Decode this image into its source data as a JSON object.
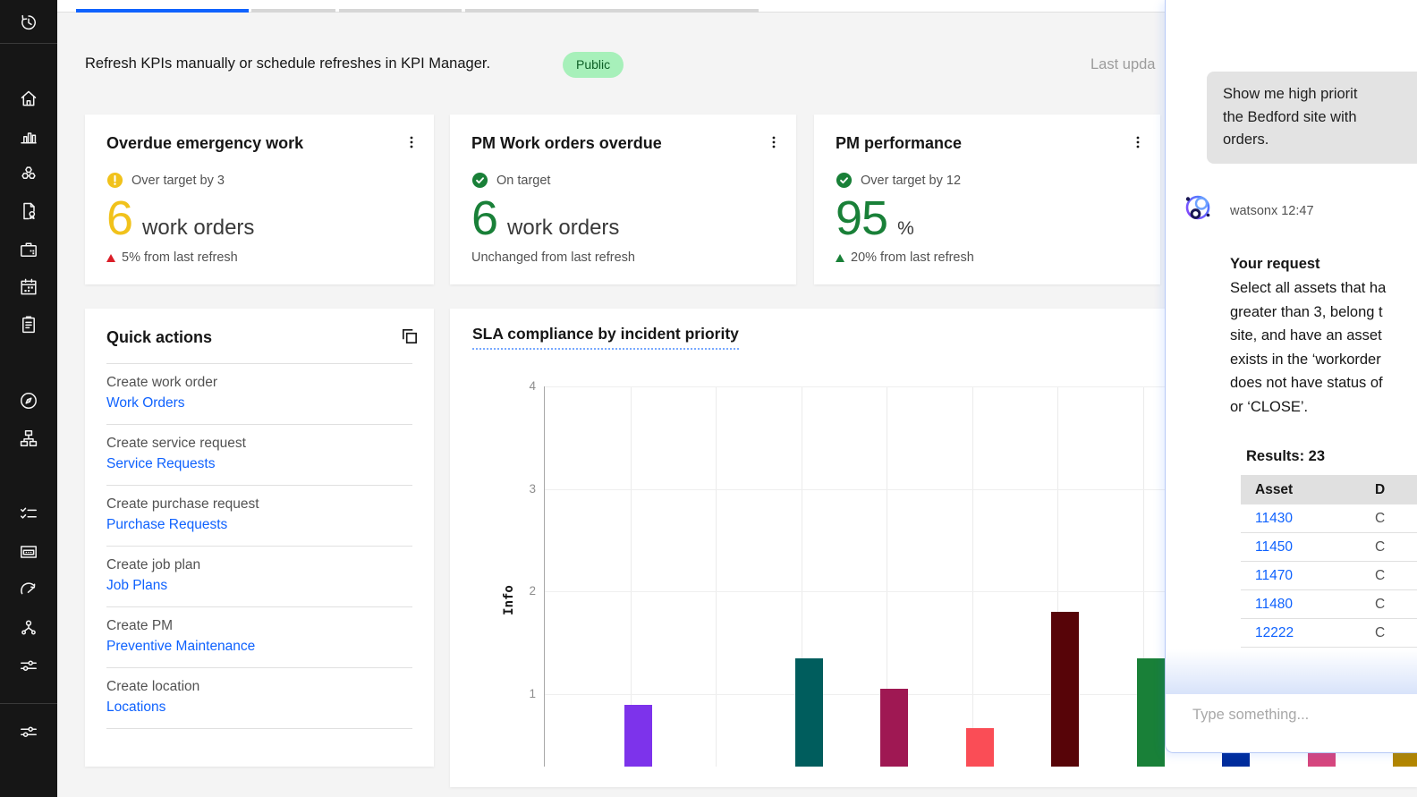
{
  "banner": {
    "message": "Refresh KPIs manually or schedule refreshes in KPI Manager.",
    "badge": "Public",
    "last_updated": "Last upda"
  },
  "kpi_cards": [
    {
      "title": "Overdue emergency work",
      "status": "Over target by 3",
      "status_type": "warning",
      "value": "6",
      "value_color": "#f1c21b",
      "unit": "work orders",
      "trend": "5% from last refresh",
      "trend_dir": "up",
      "trend_color": "#da1e28"
    },
    {
      "title": "PM Work orders overdue",
      "status": "On target",
      "status_type": "success",
      "value": "6",
      "value_color": "#198038",
      "unit": "work orders",
      "trend": "Unchanged from last refresh",
      "trend_dir": "none",
      "trend_color": ""
    },
    {
      "title": "PM performance",
      "status": "Over target by 12",
      "status_type": "success",
      "value": "95",
      "value_color": "#198038",
      "unit": "%",
      "trend": "20% from last refresh",
      "trend_dir": "up",
      "trend_color": "#198038"
    }
  ],
  "quick_actions": {
    "title": "Quick actions",
    "items": [
      {
        "label": "Create work order",
        "link": "Work Orders"
      },
      {
        "label": "Create service request",
        "link": "Service Requests"
      },
      {
        "label": "Create purchase request",
        "link": "Purchase Requests"
      },
      {
        "label": "Create job plan",
        "link": "Job Plans"
      },
      {
        "label": "Create PM",
        "link": "Preventive Maintenance"
      },
      {
        "label": "Create location",
        "link": "Locations"
      }
    ]
  },
  "chart_data": {
    "type": "bar",
    "title": "SLA compliance by incident priority",
    "ylabel": "Info",
    "ylim": [
      0,
      4
    ],
    "yticks": [
      4,
      3,
      2,
      1
    ],
    "grid": true,
    "values": [
      0.9,
      null,
      1.35,
      1.05,
      0.67,
      1.8,
      1.35,
      1.2,
      0.9,
      1.1
    ],
    "colors": [
      "#7d33eb",
      null,
      "#005d5d",
      "#9f1853",
      "#fa4d56",
      "#570408",
      "#198038",
      "#002d9c",
      "#d6467e",
      "#b28600"
    ]
  },
  "chat": {
    "user_message_lines": [
      "Show me high priorit",
      "the Bedford site with",
      "orders."
    ],
    "sender": "watsonx 12:47",
    "request_heading": "Your request",
    "request_lines": [
      "Select all assets that ha",
      "greater than 3, belong t",
      "site, and have an asset",
      "exists in the ‘workorder",
      "does not have status of",
      "or ‘CLOSE’."
    ],
    "results_label": "Results: 23",
    "table": {
      "col1_header": "Asset",
      "col2_header": "D",
      "rows": [
        {
          "asset": "11430",
          "col2": "C"
        },
        {
          "asset": "11450",
          "col2": "C"
        },
        {
          "asset": "11470",
          "col2": "C"
        },
        {
          "asset": "11480",
          "col2": "C"
        },
        {
          "asset": "12222",
          "col2": "C"
        }
      ]
    },
    "input_placeholder": "Type something..."
  },
  "colors": {
    "accent": "#0f62fe",
    "badge_bg": "#a7f0ba",
    "badge_text": "#0e6027",
    "warning": "#f1c21b",
    "success": "#198038",
    "danger": "#da1e28",
    "panel_border": "#b7c9f6"
  }
}
